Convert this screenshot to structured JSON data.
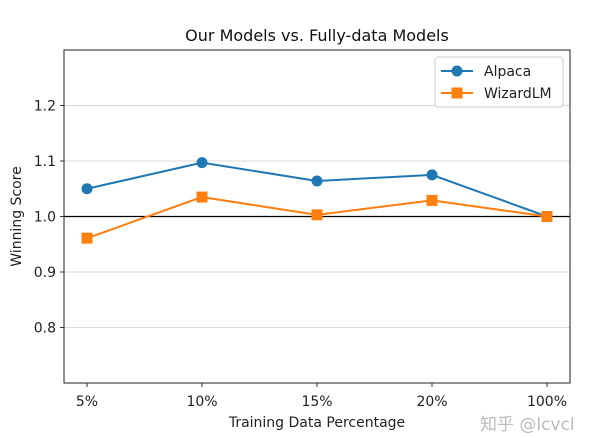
{
  "chart_data": {
    "type": "line",
    "title": "Our Models vs. Fully-data Models",
    "xlabel": "Training Data Percentage",
    "ylabel": "Winning Score",
    "categories": [
      "5%",
      "10%",
      "15%",
      "20%",
      "100%"
    ],
    "ylim": [
      0.7,
      1.3
    ],
    "yticks": [
      0.8,
      0.9,
      1.0,
      1.1,
      1.2
    ],
    "ytick_labels": [
      "0.8",
      "0.9",
      "1.0",
      "1.1",
      "1.2"
    ],
    "grid": "horizontal",
    "reference_line": {
      "y": 1.0,
      "color": "#000000"
    },
    "legend_position": "top-right",
    "series": [
      {
        "name": "Alpaca",
        "values": [
          1.05,
          1.097,
          1.064,
          1.075,
          1.0
        ],
        "color": "#1f77b4",
        "marker": "circle"
      },
      {
        "name": "WizardLM",
        "values": [
          0.961,
          1.035,
          1.003,
          1.029,
          1.0
        ],
        "color": "#ff7f0e",
        "marker": "square"
      }
    ]
  },
  "watermark": "知乎 @lcvcl"
}
